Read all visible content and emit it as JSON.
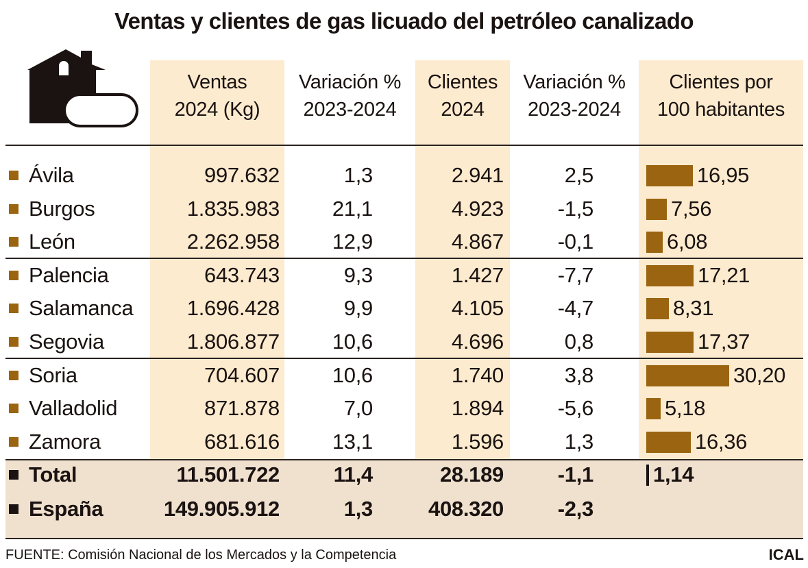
{
  "title": "Ventas y clientes de gas licuado del petróleo canalizado",
  "icon": "house-gas-tank-icon",
  "colors": {
    "shade": "#fdebcf",
    "bar": "#9a6410",
    "total_bg": "#f0e1cf",
    "total_bar": "#1a1311"
  },
  "chart_data": {
    "type": "table",
    "columns": [
      "Ventas 2024 (Kg)",
      "Variación % 2023-2024",
      "Clientes 2024",
      "Variación % 2023-2024",
      "Clientes por 100 habitantes"
    ],
    "rows": [
      {
        "name": "Ávila",
        "ventas": "997.632",
        "var_ventas": "1,3",
        "clientes": "2.941",
        "var_clientes": "2,5",
        "por100": "16,95",
        "por100_value": 16.95
      },
      {
        "name": "Burgos",
        "ventas": "1.835.983",
        "var_ventas": "21,1",
        "clientes": "4.923",
        "var_clientes": "-1,5",
        "por100": "7,56",
        "por100_value": 7.56
      },
      {
        "name": "León",
        "ventas": "2.262.958",
        "var_ventas": "12,9",
        "clientes": "4.867",
        "var_clientes": "-0,1",
        "por100": "6,08",
        "por100_value": 6.08
      },
      {
        "name": "Palencia",
        "ventas": "643.743",
        "var_ventas": "9,3",
        "clientes": "1.427",
        "var_clientes": "-7,7",
        "por100": "17,21",
        "por100_value": 17.21
      },
      {
        "name": "Salamanca",
        "ventas": "1.696.428",
        "var_ventas": "9,9",
        "clientes": "4.105",
        "var_clientes": "-4,7",
        "por100": "8,31",
        "por100_value": 8.31
      },
      {
        "name": "Segovia",
        "ventas": "1.806.877",
        "var_ventas": "10,6",
        "clientes": "4.696",
        "var_clientes": "0,8",
        "por100": "17,37",
        "por100_value": 17.37
      },
      {
        "name": "Soria",
        "ventas": "704.607",
        "var_ventas": "10,6",
        "clientes": "1.740",
        "var_clientes": "3,8",
        "por100": "30,20",
        "por100_value": 30.2
      },
      {
        "name": "Valladolid",
        "ventas": "871.878",
        "var_ventas": "7,0",
        "clientes": "1.894",
        "var_clientes": "-5,6",
        "por100": "5,18",
        "por100_value": 5.18
      },
      {
        "name": "Zamora",
        "ventas": "681.616",
        "var_ventas": "13,1",
        "clientes": "1.596",
        "var_clientes": "1,3",
        "por100": "16,36",
        "por100_value": 16.36
      }
    ],
    "totals": [
      {
        "name": "Total",
        "ventas": "11.501.722",
        "var_ventas": "11,4",
        "clientes": "28.189",
        "var_clientes": "-1,1",
        "por100": "1,14",
        "por100_value": 1.14
      },
      {
        "name": "España",
        "ventas": "149.905.912",
        "var_ventas": "1,3",
        "clientes": "408.320",
        "var_clientes": "-2,3"
      }
    ]
  },
  "headers": {
    "ventas": [
      "Ventas",
      "2024 (Kg)"
    ],
    "var_ventas": [
      "Variación %",
      "2023-2024"
    ],
    "clientes": [
      "Clientes",
      "2024"
    ],
    "var_clientes": [
      "Variación %",
      "2023-2024"
    ],
    "por100": [
      "Clientes por",
      "100 habitantes"
    ]
  },
  "footer": {
    "source": "FUENTE: Comisión Nacional de los Mercados y la Competencia",
    "credit": "ICAL"
  }
}
